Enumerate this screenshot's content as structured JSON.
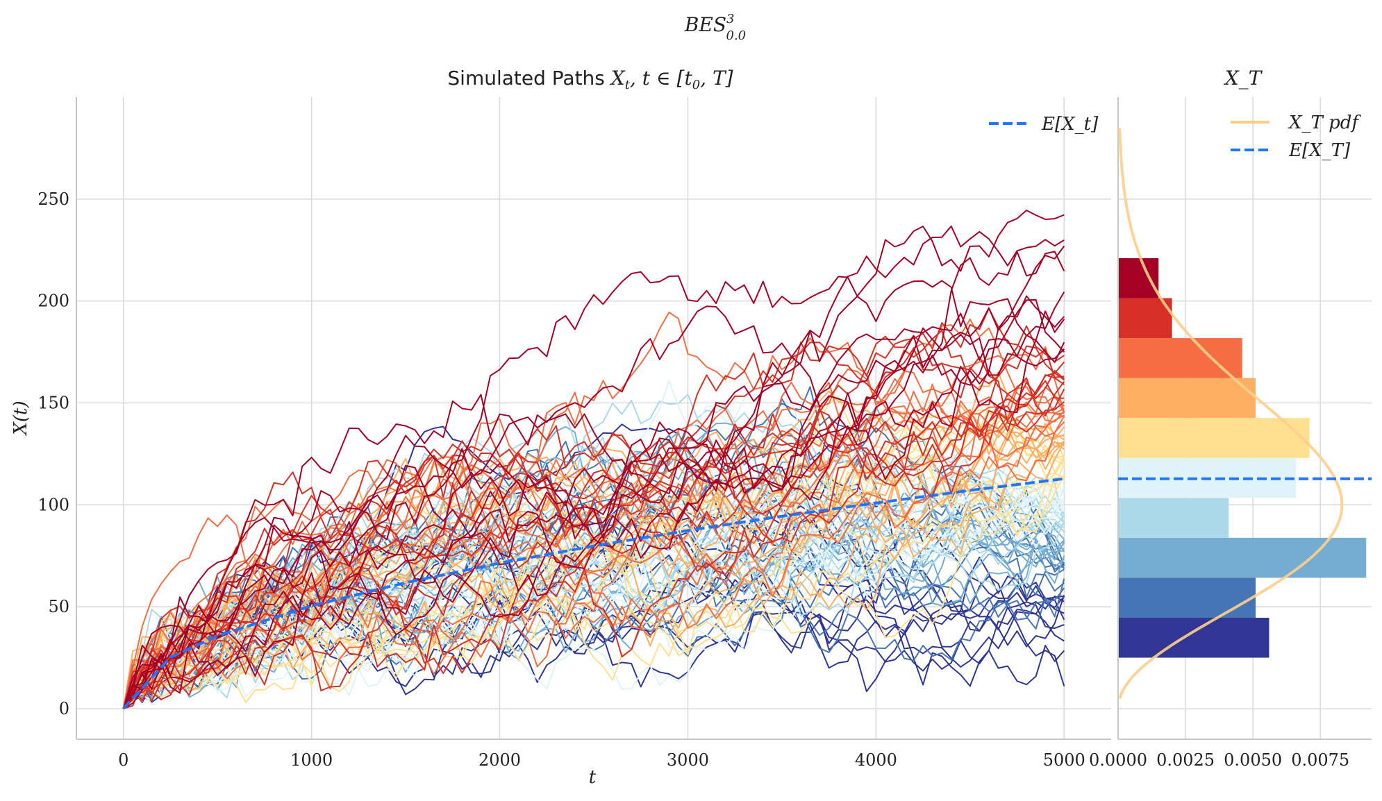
{
  "figure_title": "BES",
  "figure_title_sup": "3",
  "figure_title_sub": "0.0",
  "colors": {
    "mean": "#1f77ff",
    "pdf": "#fdcf8b",
    "grid": "#d9d9d9",
    "axis": "#c8c8c8",
    "palette": [
      "#a50026",
      "#d73027",
      "#f46d43",
      "#fdae61",
      "#fee090",
      "#e0f3f8",
      "#abd9e9",
      "#74add1",
      "#4575b4",
      "#313695"
    ]
  },
  "chart_data": [
    {
      "type": "line",
      "title": "Simulated Paths X_t, t ∈ [t_0, T]",
      "title_text": "Simulated Paths ",
      "title_math": "X",
      "title_math_sub": "t",
      "title_math_rest": ", t ∈ [t",
      "title_math_sub2": "0",
      "title_math_end": ", T]",
      "xlabel": "t",
      "ylabel": "X(t)",
      "xlim": [
        -250,
        5250
      ],
      "ylim": [
        -15,
        300
      ],
      "xticks": [
        0,
        1000,
        2000,
        3000,
        4000,
        5000
      ],
      "yticks": [
        0,
        50,
        100,
        150,
        200,
        250
      ],
      "grid": true,
      "legend": "top-right",
      "n_paths": 100,
      "n_steps": 100,
      "t_end": 5000,
      "mean_series": {
        "name": "E[X_t]",
        "x": [
          0,
          250,
          500,
          1000,
          1500,
          2000,
          2500,
          3000,
          3500,
          4000,
          4500,
          5000
        ],
        "values": [
          0,
          25.2,
          35.7,
          50.5,
          61.8,
          71.4,
          79.8,
          87.4,
          94.4,
          100.9,
          107.1,
          112.8
        ]
      },
      "path_end_values_sample": [
        221,
        214,
        190,
        186,
        175,
        165,
        160,
        152,
        145,
        130,
        118,
        105,
        95,
        85,
        75,
        66,
        55,
        45,
        38,
        25
      ]
    },
    {
      "type": "bar",
      "orientation": "horizontal",
      "title": "X_T",
      "legend": "top-right",
      "xlim": [
        0,
        0.0094
      ],
      "xticks": [
        0.0,
        0.0025,
        0.005,
        0.0075
      ],
      "xtick_labels": [
        "0.0000",
        "0.0025",
        "0.0050",
        "0.0075"
      ],
      "ylim": [
        -15,
        300
      ],
      "bins": [
        25,
        44.6,
        64.2,
        83.8,
        103.4,
        123.0,
        142.6,
        162.2,
        181.8,
        201.4,
        221.0
      ],
      "densities": [
        0.0056,
        0.0051,
        0.0092,
        0.0041,
        0.0066,
        0.0071,
        0.0051,
        0.0046,
        0.002,
        0.0015
      ],
      "mean": 112.8,
      "series": [
        {
          "name": "X_T pdf"
        },
        {
          "name": "E[X_T]"
        }
      ]
    }
  ]
}
